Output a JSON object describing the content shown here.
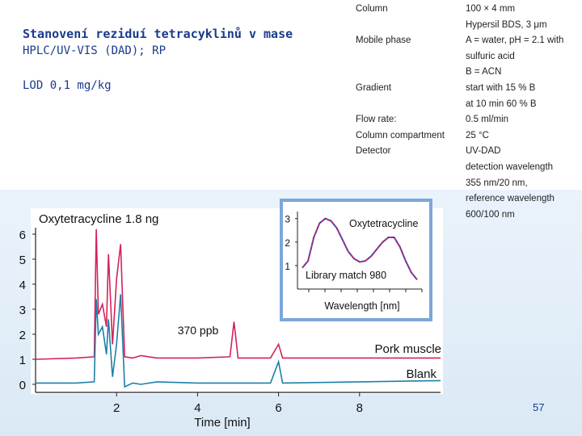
{
  "slide": {
    "title": "Stanovení reziduí tetracyklinů v mase",
    "subtitle": "HPLC/UV-VIS (DAD); RP",
    "lod": "LOD 0,1 mg/kg",
    "page_number": "57"
  },
  "params": [
    {
      "key": "Column",
      "value": "100 × 4 mm"
    },
    {
      "key": "",
      "value": "Hypersil BDS, 3 μm"
    },
    {
      "key": "Mobile phase",
      "value": "A = water, pH = 2.1 with"
    },
    {
      "key": "",
      "value": "sulfuric acid"
    },
    {
      "key": "",
      "value": "B = ACN"
    },
    {
      "key": "Gradient",
      "value": "start with 15 % B"
    },
    {
      "key": "",
      "value": "at 10 min 60 % B"
    },
    {
      "key": "Flow rate:",
      "value": "0.5 ml/min"
    },
    {
      "key": "Column compartment",
      "value": "25 °C"
    },
    {
      "key": "Detector",
      "value": "UV-DAD"
    },
    {
      "key": "",
      "value": "detection wavelength"
    },
    {
      "key": "",
      "value": "355 nm/20 nm,"
    },
    {
      "key": "",
      "value": "reference wavelength"
    },
    {
      "key": "",
      "value": "600/100 nm"
    }
  ],
  "colors": {
    "pork": "#d4235a",
    "blank": "#1f7fa8",
    "spectrum_a": "#d4235a",
    "spectrum_b": "#4a3fb0",
    "text": "#1a3a8c"
  },
  "chart_data": [
    {
      "type": "line",
      "title": "Oxytetracycline 1.8 ng",
      "xlabel": "Time [min]",
      "ylabel": "",
      "xlim": [
        0,
        10
      ],
      "ylim": [
        0,
        6
      ],
      "x_ticks": [
        2,
        4,
        6,
        8
      ],
      "y_ticks": [
        0,
        1,
        2,
        3,
        4,
        5,
        6
      ],
      "annotation": "370 ppb",
      "series": [
        {
          "name": "Pork muscle",
          "x": [
            0,
            1.0,
            1.45,
            1.5,
            1.55,
            1.65,
            1.75,
            1.8,
            1.9,
            2.0,
            2.1,
            2.2,
            2.4,
            2.6,
            3.0,
            4.0,
            4.8,
            4.9,
            5.0,
            5.8,
            6.0,
            6.1,
            6.2,
            8.0,
            10.0
          ],
          "y": [
            1.0,
            1.05,
            1.1,
            6.2,
            2.8,
            3.2,
            2.3,
            5.2,
            1.6,
            4.2,
            5.6,
            1.1,
            1.05,
            1.15,
            1.05,
            1.05,
            1.1,
            2.5,
            1.05,
            1.05,
            1.6,
            1.05,
            1.05,
            1.05,
            1.05
          ]
        },
        {
          "name": "Blank",
          "x": [
            0,
            1.0,
            1.45,
            1.5,
            1.55,
            1.65,
            1.75,
            1.8,
            1.9,
            2.0,
            2.1,
            2.2,
            2.4,
            2.6,
            3.0,
            4.0,
            5.8,
            6.0,
            6.1,
            8.0,
            10.0
          ],
          "y": [
            0.05,
            0.05,
            0.1,
            3.4,
            2.0,
            2.3,
            1.2,
            2.6,
            0.3,
            1.6,
            3.6,
            -0.1,
            0.05,
            0.0,
            0.1,
            0.05,
            0.05,
            0.9,
            0.05,
            0.1,
            0.15
          ]
        }
      ]
    },
    {
      "type": "line",
      "title": "Oxytetracycline",
      "xlabel": "Wavelength [nm]",
      "ylabel": "",
      "y_ticks": [
        1,
        2,
        3
      ],
      "annotation": "Library match 980",
      "series": [
        {
          "name": "",
          "x": [
            0,
            0.05,
            0.1,
            0.15,
            0.2,
            0.25,
            0.3,
            0.35,
            0.4,
            0.45,
            0.5,
            0.55,
            0.6,
            0.65,
            0.7,
            0.75,
            0.8,
            0.85,
            0.9,
            0.95,
            1.0
          ],
          "y": [
            0.9,
            1.2,
            2.2,
            2.8,
            3.0,
            2.9,
            2.6,
            2.1,
            1.6,
            1.3,
            1.15,
            1.2,
            1.4,
            1.7,
            2.0,
            2.2,
            2.2,
            1.8,
            1.2,
            0.7,
            0.4
          ]
        }
      ]
    }
  ]
}
